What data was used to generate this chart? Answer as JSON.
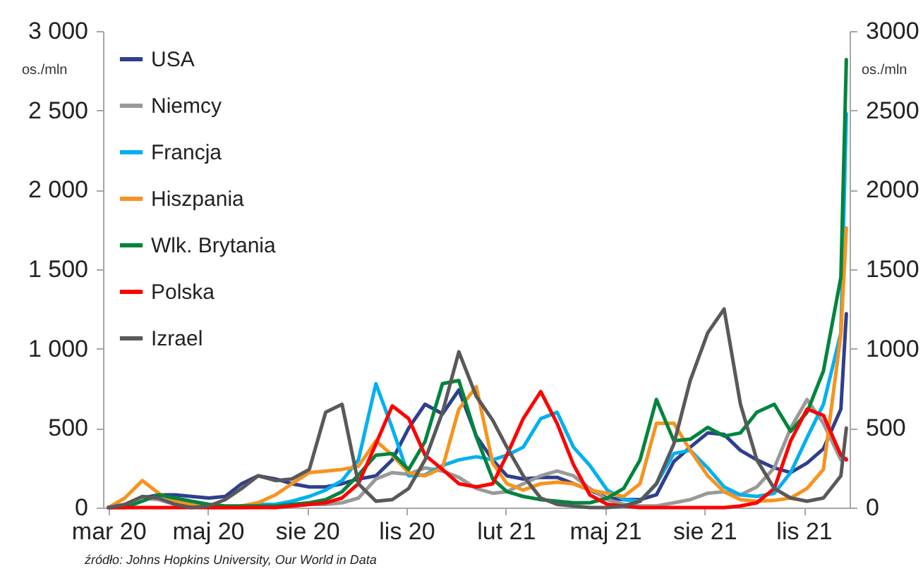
{
  "chart_data": {
    "type": "line",
    "ylabel": "os./mln",
    "y2label": "os./mln",
    "annotations": [
      "źródło: Johns Hopkins University, Our World in Data"
    ],
    "x": [
      "2020-03-01",
      "2020-03-16",
      "2020-04-01",
      "2020-04-16",
      "2020-05-01",
      "2020-05-16",
      "2020-06-01",
      "2020-06-16",
      "2020-07-01",
      "2020-07-16",
      "2020-08-01",
      "2020-08-16",
      "2020-09-01",
      "2020-09-16",
      "2020-10-01",
      "2020-10-16",
      "2020-11-01",
      "2020-11-16",
      "2020-12-01",
      "2020-12-16",
      "2021-01-01",
      "2021-01-16",
      "2021-02-01",
      "2021-02-16",
      "2021-03-01",
      "2021-03-16",
      "2021-04-01",
      "2021-04-16",
      "2021-05-01",
      "2021-05-16",
      "2021-06-01",
      "2021-06-16",
      "2021-07-01",
      "2021-07-16",
      "2021-08-01",
      "2021-08-16",
      "2021-09-01",
      "2021-09-16",
      "2021-10-01",
      "2021-10-16",
      "2021-11-01",
      "2021-11-16",
      "2021-12-01",
      "2021-12-16",
      "2022-01-01",
      "2022-01-06"
    ],
    "series": [
      {
        "name": "USA",
        "color": "#2e3f8f",
        "values": [
          0,
          10,
          60,
          80,
          80,
          70,
          60,
          70,
          150,
          200,
          180,
          150,
          130,
          130,
          150,
          180,
          200,
          300,
          500,
          650,
          590,
          740,
          450,
          300,
          200,
          180,
          190,
          190,
          150,
          110,
          60,
          50,
          50,
          80,
          290,
          380,
          470,
          460,
          360,
          300,
          250,
          220,
          280,
          370,
          620,
          1220
        ]
      },
      {
        "name": "Niemcy",
        "color": "#999999",
        "values": [
          0,
          10,
          60,
          50,
          20,
          10,
          0,
          0,
          0,
          null,
          10,
          10,
          20,
          20,
          30,
          60,
          180,
          220,
          210,
          250,
          230,
          190,
          120,
          90,
          100,
          150,
          200,
          230,
          200,
          120,
          50,
          20,
          10,
          10,
          30,
          50,
          90,
          100,
          80,
          130,
          250,
          500,
          680,
          530,
          300,
          310
        ]
      },
      {
        "name": "Francja",
        "color": "#00b0f0",
        "values": [
          null,
          null,
          null,
          null,
          null,
          null,
          null,
          null,
          10,
          20,
          20,
          40,
          70,
          110,
          170,
          300,
          780,
          500,
          200,
          205,
          265,
          300,
          320,
          300,
          330,
          380,
          560,
          600,
          380,
          265,
          110,
          50,
          40,
          150,
          340,
          360,
          250,
          130,
          80,
          70,
          90,
          220,
          440,
          650,
          1100,
          2480
        ]
      },
      {
        "name": "Hiszpania",
        "color": "#f7931e",
        "values": [
          0,
          60,
          170,
          90,
          40,
          20,
          10,
          0,
          10,
          30,
          80,
          150,
          220,
          230,
          240,
          260,
          420,
          330,
          220,
          200,
          250,
          620,
          760,
          280,
          150,
          110,
          150,
          160,
          150,
          110,
          90,
          70,
          150,
          530,
          530,
          360,
          200,
          100,
          50,
          40,
          45,
          60,
          120,
          240,
          1090,
          1760
        ]
      },
      {
        "name": "Wlk. Brytania",
        "color": "#00843d",
        "values": [
          0,
          0,
          40,
          80,
          60,
          40,
          20,
          10,
          10,
          10,
          10,
          20,
          30,
          50,
          100,
          205,
          330,
          340,
          240,
          415,
          780,
          800,
          445,
          180,
          100,
          70,
          50,
          40,
          30,
          30,
          60,
          120,
          300,
          680,
          420,
          430,
          505,
          450,
          470,
          600,
          650,
          480,
          600,
          860,
          1450,
          2820
        ]
      },
      {
        "name": "Polska",
        "color": "#ff0000",
        "values": [
          0,
          0,
          0,
          0,
          0,
          0,
          0,
          0,
          0,
          0,
          0,
          10,
          20,
          30,
          60,
          150,
          400,
          640,
          560,
          330,
          240,
          150,
          130,
          150,
          330,
          560,
          730,
          530,
          270,
          80,
          20,
          10,
          0,
          0,
          0,
          0,
          0,
          0,
          10,
          30,
          120,
          420,
          620,
          580,
          330,
          300
        ]
      },
      {
        "name": "Izrael",
        "color": "#595959",
        "values": [
          0,
          20,
          70,
          60,
          20,
          0,
          10,
          50,
          120,
          200,
          170,
          180,
          240,
          600,
          650,
          150,
          40,
          50,
          120,
          300,
          600,
          980,
          700,
          550,
          380,
          200,
          60,
          20,
          10,
          0,
          0,
          10,
          40,
          150,
          400,
          800,
          1100,
          1250,
          650,
          300,
          120,
          60,
          40,
          60,
          200,
          500
        ]
      }
    ],
    "xlim": [
      "2020-02-25",
      "2022-01-09"
    ],
    "xticks": [
      {
        "value": "2020-03-01",
        "label": "mar 20"
      },
      {
        "value": "2020-05-31",
        "label": "maj 20"
      },
      {
        "value": "2020-08-30",
        "label": "sie 20"
      },
      {
        "value": "2020-11-29",
        "label": "lis 20"
      },
      {
        "value": "2021-02-28",
        "label": "lut 21"
      },
      {
        "value": "2021-05-30",
        "label": "maj 21"
      },
      {
        "value": "2021-08-29",
        "label": "sie 21"
      },
      {
        "value": "2021-11-28",
        "label": "lis 21"
      }
    ],
    "ylim": [
      0,
      3000
    ],
    "yticks": [
      {
        "value": 0,
        "label": "0"
      },
      {
        "value": 500,
        "label": "500"
      },
      {
        "value": 1000,
        "label": "1 000"
      },
      {
        "value": 1500,
        "label": "1 500"
      },
      {
        "value": 2000,
        "label": "2 000"
      },
      {
        "value": 2500,
        "label": "2 500"
      },
      {
        "value": 3000,
        "label": "3 000"
      }
    ],
    "y2lim": [
      0,
      3000
    ],
    "y2ticks": [
      0,
      500,
      1000,
      1500,
      2000,
      2500,
      3000
    ],
    "grid": false,
    "legend": "top left",
    "marker": "none",
    "line_style": "solid"
  }
}
